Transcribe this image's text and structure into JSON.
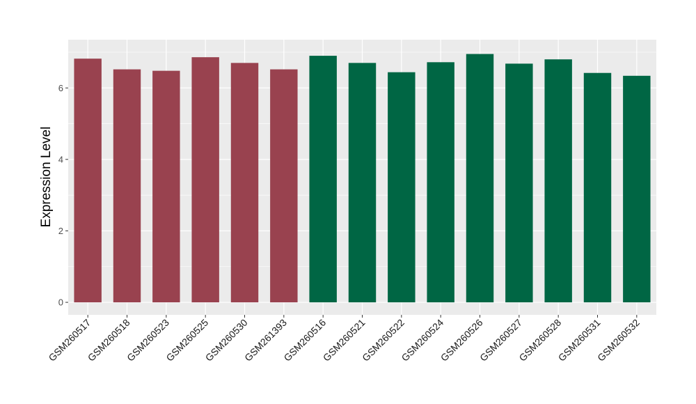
{
  "chart_data": {
    "type": "bar",
    "title": "",
    "xlabel": "",
    "ylabel": "Expression Level",
    "ylim": [
      -0.35,
      7.35
    ],
    "y_ticks": [
      0,
      2,
      4,
      6
    ],
    "grid": true,
    "panel_background": "#ebebeb",
    "categories": [
      "GSM260517",
      "GSM260518",
      "GSM260523",
      "GSM260525",
      "GSM260530",
      "GSM261393",
      "GSM260516",
      "GSM260521",
      "GSM260522",
      "GSM260524",
      "GSM260526",
      "GSM260527",
      "GSM260528",
      "GSM260531",
      "GSM260532"
    ],
    "values": [
      6.82,
      6.52,
      6.48,
      6.86,
      6.7,
      6.52,
      6.9,
      6.7,
      6.44,
      6.72,
      6.95,
      6.68,
      6.8,
      6.42,
      6.34
    ],
    "group_colors": [
      "#99424f",
      "#99424f",
      "#99424f",
      "#99424f",
      "#99424f",
      "#99424f",
      "#006644",
      "#006644",
      "#006644",
      "#006644",
      "#006644",
      "#006644",
      "#006644",
      "#006644",
      "#006644"
    ]
  }
}
